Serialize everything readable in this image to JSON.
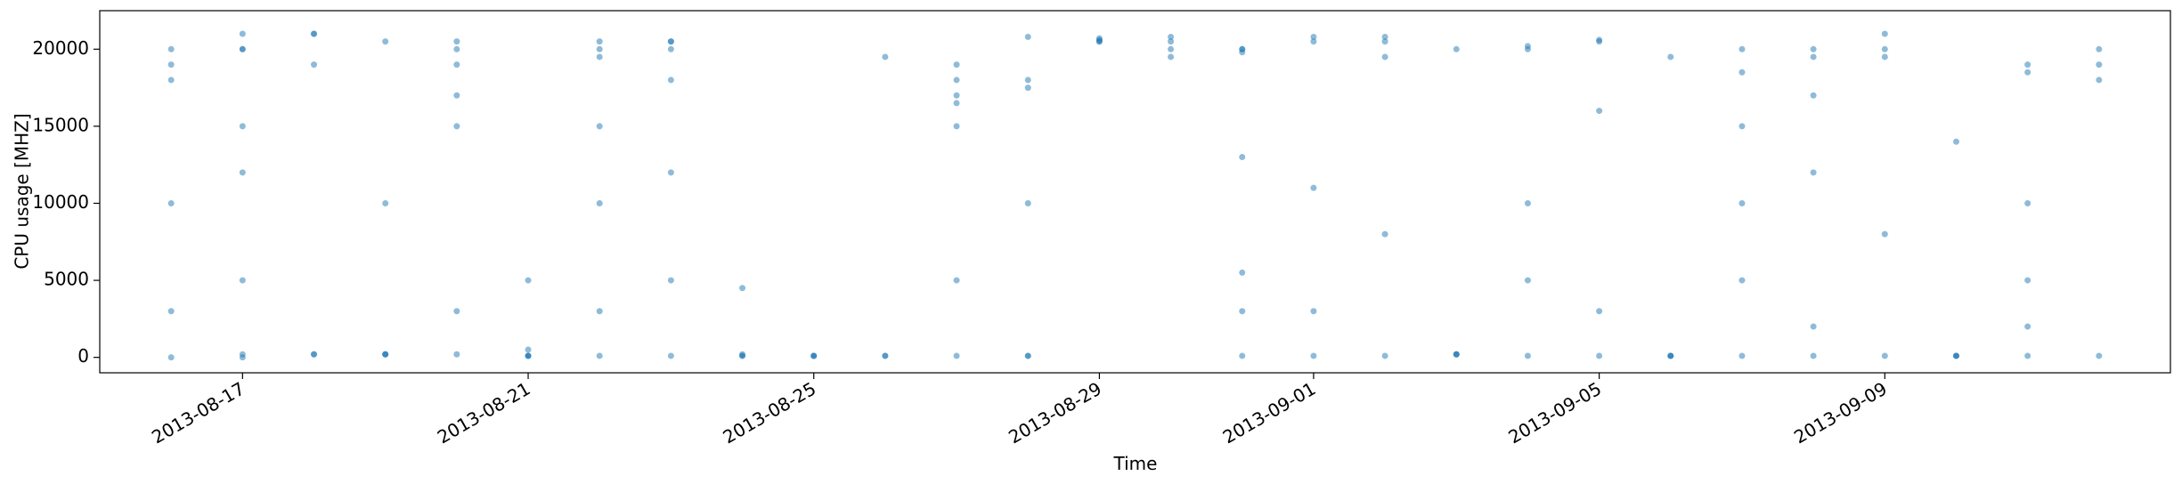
{
  "chart_data": {
    "type": "scatter",
    "xlabel": "Time",
    "ylabel": "CPU usage [MHZ]",
    "color": "#1f77b4",
    "x": [
      "2013-08-16",
      "2013-08-16",
      "2013-08-16",
      "2013-08-16",
      "2013-08-16",
      "2013-08-16",
      "2013-08-17",
      "2013-08-17",
      "2013-08-17",
      "2013-08-17",
      "2013-08-17",
      "2013-08-17",
      "2013-08-17",
      "2013-08-17",
      "2013-08-18",
      "2013-08-18",
      "2013-08-18",
      "2013-08-18",
      "2013-08-18",
      "2013-08-19",
      "2013-08-19",
      "2013-08-19",
      "2013-08-19",
      "2013-08-19",
      "2013-08-20",
      "2013-08-20",
      "2013-08-20",
      "2013-08-20",
      "2013-08-20",
      "2013-08-20",
      "2013-08-20",
      "2013-08-21",
      "2013-08-21",
      "2013-08-21",
      "2013-08-21",
      "2013-08-21",
      "2013-08-22",
      "2013-08-22",
      "2013-08-22",
      "2013-08-22",
      "2013-08-22",
      "2013-08-22",
      "2013-08-22",
      "2013-08-23",
      "2013-08-23",
      "2013-08-23",
      "2013-08-23",
      "2013-08-23",
      "2013-08-23",
      "2013-08-23",
      "2013-08-24",
      "2013-08-24",
      "2013-08-24",
      "2013-08-24",
      "2013-08-25",
      "2013-08-25",
      "2013-08-25",
      "2013-08-26",
      "2013-08-26",
      "2013-08-26",
      "2013-08-27",
      "2013-08-27",
      "2013-08-27",
      "2013-08-27",
      "2013-08-27",
      "2013-08-27",
      "2013-08-27",
      "2013-08-28",
      "2013-08-28",
      "2013-08-28",
      "2013-08-28",
      "2013-08-28",
      "2013-08-28",
      "2013-08-29",
      "2013-08-29",
      "2013-08-29",
      "2013-08-29",
      "2013-08-30",
      "2013-08-30",
      "2013-08-30",
      "2013-08-30",
      "2013-08-31",
      "2013-08-31",
      "2013-08-31",
      "2013-08-31",
      "2013-08-31",
      "2013-08-31",
      "2013-08-31",
      "2013-09-01",
      "2013-09-01",
      "2013-09-01",
      "2013-09-01",
      "2013-09-01",
      "2013-09-02",
      "2013-09-02",
      "2013-09-02",
      "2013-09-02",
      "2013-09-02",
      "2013-09-03",
      "2013-09-03",
      "2013-09-03",
      "2013-09-03",
      "2013-09-04",
      "2013-09-04",
      "2013-09-04",
      "2013-09-04",
      "2013-09-04",
      "2013-09-05",
      "2013-09-05",
      "2013-09-05",
      "2013-09-05",
      "2013-09-05",
      "2013-09-06",
      "2013-09-06",
      "2013-09-06",
      "2013-09-06",
      "2013-09-07",
      "2013-09-07",
      "2013-09-07",
      "2013-09-07",
      "2013-09-07",
      "2013-09-07",
      "2013-09-08",
      "2013-09-08",
      "2013-09-08",
      "2013-09-08",
      "2013-09-08",
      "2013-09-08",
      "2013-09-09",
      "2013-09-09",
      "2013-09-09",
      "2013-09-09",
      "2013-09-09",
      "2013-09-10",
      "2013-09-10",
      "2013-09-10",
      "2013-09-10",
      "2013-09-11",
      "2013-09-11",
      "2013-09-11",
      "2013-09-11",
      "2013-09-11",
      "2013-09-11",
      "2013-09-12",
      "2013-09-12",
      "2013-09-12",
      "2013-09-12"
    ],
    "values": [
      20000,
      18000,
      19000,
      3000,
      0,
      10000,
      20000,
      20000,
      15000,
      12000,
      5000,
      0,
      200,
      21000,
      200,
      200,
      21000,
      21000,
      19000,
      200,
      200,
      200,
      20500,
      10000,
      20500,
      20000,
      19000,
      17000,
      15000,
      3000,
      200,
      100,
      100,
      100,
      500,
      5000,
      20000,
      19500,
      15000,
      10000,
      3000,
      100,
      20500,
      20000,
      20500,
      18000,
      12000,
      5000,
      100,
      20500,
      4500,
      200,
      100,
      100,
      100,
      100,
      100,
      100,
      100,
      19500,
      17000,
      16500,
      18000,
      19000,
      100,
      5000,
      15000,
      18000,
      17500,
      10000,
      100,
      100,
      20800,
      20500,
      20600,
      20700,
      20500,
      20800,
      20500,
      20000,
      19500,
      20000,
      19800,
      13000,
      5500,
      3000,
      100,
      20000,
      20800,
      20500,
      11000,
      100,
      3000,
      20800,
      20500,
      8000,
      100,
      19500,
      200,
      200,
      200,
      20000,
      20000,
      10000,
      20200,
      5000,
      100,
      20600,
      20500,
      3000,
      100,
      16000,
      100,
      100,
      100,
      19500,
      20000,
      18500,
      15000,
      100,
      10000,
      5000,
      19500,
      17000,
      12000,
      2000,
      100,
      20000,
      19500,
      20000,
      21000,
      100,
      8000,
      100,
      100,
      100,
      14000,
      18500,
      19000,
      10000,
      100,
      2000,
      5000,
      19000,
      18000,
      20000,
      100
    ],
    "xlim": [
      "2013-08-15",
      "2013-09-13"
    ],
    "xticks": [
      "2013-08-17",
      "2013-08-21",
      "2013-08-25",
      "2013-08-29",
      "2013-09-01",
      "2013-09-05",
      "2013-09-09"
    ],
    "ylim": [
      -1000,
      22500
    ],
    "yticks": [
      0,
      5000,
      10000,
      15000,
      20000
    ]
  }
}
